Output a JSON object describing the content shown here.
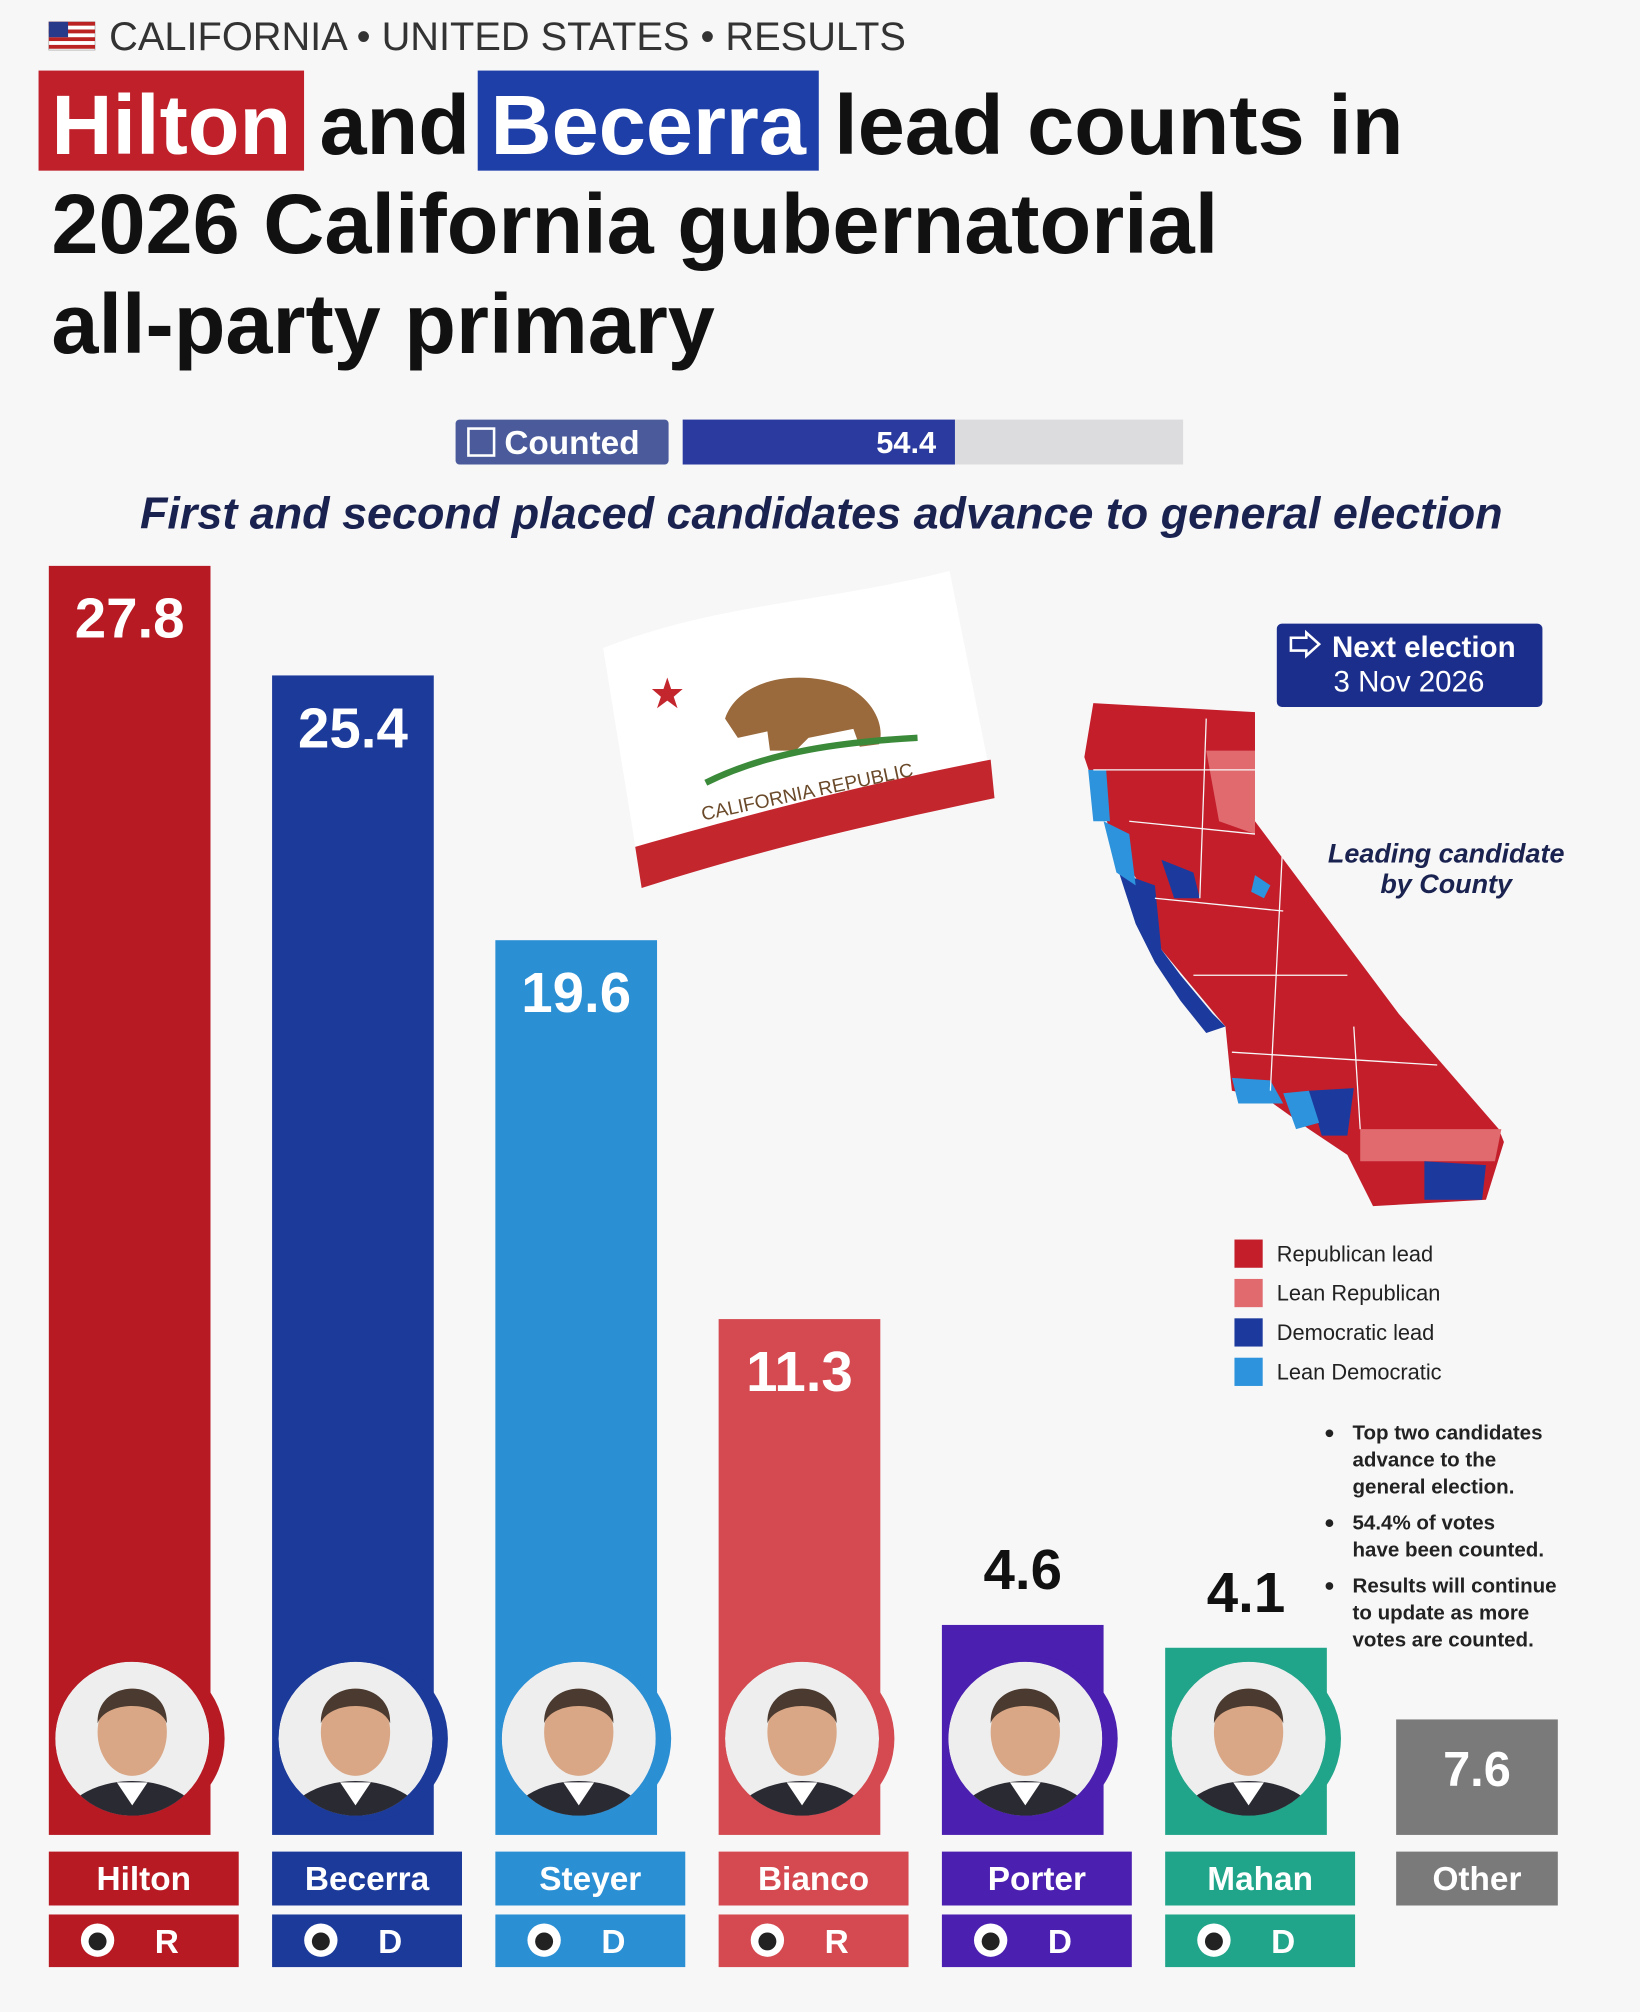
{
  "header": "CALIFORNIA • UNITED STATES • RESULTS",
  "title": {
    "highlight_1": "Hilton",
    "text_1": "and",
    "highlight_2": "Becerra",
    "text_2": "lead counts in",
    "line_2": "2026 California gubernatorial",
    "line_3": "all-party primary"
  },
  "counted": {
    "label": "Counted",
    "value": 54.4,
    "xlim": [
      0,
      100
    ]
  },
  "subtitle": "First and second placed candidates advance to general election",
  "next_election": {
    "label": "Next election",
    "date": "3 Nov 2026"
  },
  "flag_text": "CALIFORNIA REPUBLIC",
  "map": {
    "title": [
      "Leading candidate",
      "by County"
    ],
    "legend": [
      {
        "name": "Republican lead",
        "color": "#c41e2b"
      },
      {
        "name": "Lean Republican",
        "color": "#e06a6e"
      },
      {
        "name": "Democratic lead",
        "color": "#1c3a9e"
      },
      {
        "name": "Lean Democratic",
        "color": "#2c93dc"
      }
    ]
  },
  "notes": [
    [
      "Top two candidates",
      "advance to the",
      "general election."
    ],
    [
      "54.4% of votes",
      "have been counted."
    ],
    [
      "Results will continue",
      "to update as more",
      "votes are counted."
    ]
  ],
  "chart_data": {
    "type": "bar",
    "categories": [
      "Hilton",
      "Becerra",
      "Steyer",
      "Bianco",
      "Porter",
      "Mahan"
    ],
    "values": [
      27.8,
      25.4,
      19.6,
      11.3,
      4.6,
      4.1
    ],
    "colors": [
      "#b81a24",
      "#1b3a9a",
      "#2b8fd4",
      "#d44a50",
      "#4b1fb0",
      "#21a58a"
    ],
    "parties": [
      "R",
      "D",
      "D",
      "R",
      "D",
      "D"
    ],
    "other": {
      "name": "Other",
      "value": 7.6,
      "color": "#7a7a7a"
    }
  }
}
